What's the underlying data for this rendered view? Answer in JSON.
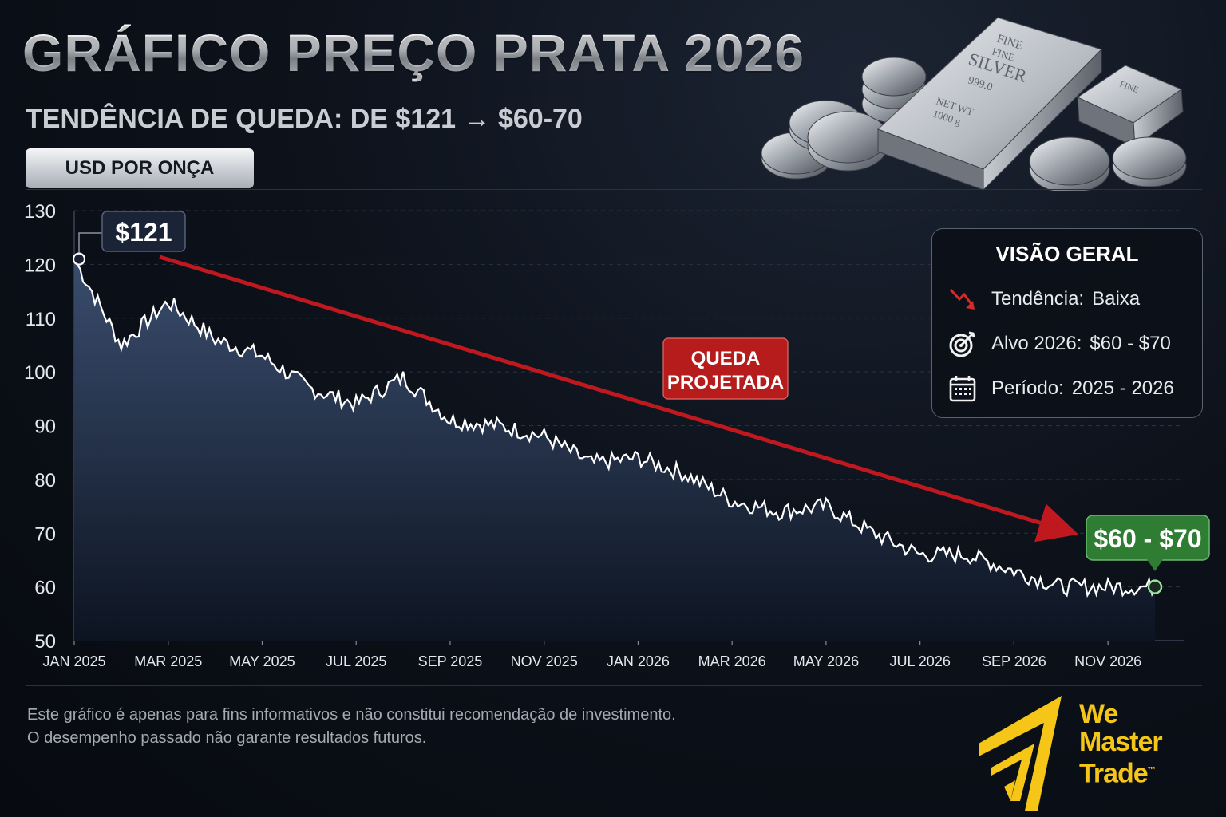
{
  "header": {
    "title": "GRÁFICO PREÇO PRATA 2026",
    "subtitle": "TENDÊNCIA DE QUEDA: DE $121 → $60-70",
    "unit_badge": "USD POR ONÇA"
  },
  "bullion": {
    "bar_line1": "FINE",
    "bar_line2": "FINE",
    "bar_line3": "SILVER",
    "bar_line4": "999.0",
    "bar_line5": "NET WT",
    "bar_line6": "1000 g",
    "bar2_text": "FINE"
  },
  "overview": {
    "title": "VISÃO GERAL",
    "rows": [
      {
        "icon": "trend-down-icon",
        "label": "Tendência:",
        "value": "Baixa"
      },
      {
        "icon": "target-icon",
        "label": "Alvo 2026:",
        "value": "$60 - $70"
      },
      {
        "icon": "calendar-icon",
        "label": "Período:",
        "value": "2025 - 2026"
      }
    ]
  },
  "disclaimer": {
    "line1": "Este gráfico é apenas para fins informativos e não constitui recomendação de investimento.",
    "line2": "O desempenho passado não garante resultados futuros."
  },
  "brand": {
    "line1": "We",
    "line2": "Master",
    "line3": "Trade",
    "tm": "™"
  },
  "colors": {
    "line": "#ffffff",
    "area_top": "#3a4d6e",
    "area_bottom": "#0d1421",
    "arrow": "#c0181f",
    "callout_green": "#2e7d32",
    "callout_red": "#b71c1c",
    "logo": "#f5c518"
  },
  "chart_data": {
    "type": "area",
    "ylim": [
      50,
      130
    ],
    "yticks": [
      50,
      60,
      70,
      80,
      90,
      100,
      110,
      120,
      130
    ],
    "xlabels": [
      "JAN 2025",
      "MAR 2025",
      "MAY 2025",
      "JUL 2025",
      "SEP 2025",
      "NOV 2025",
      "JAN 2026",
      "MAR 2026",
      "MAY 2026",
      "JUL 2026",
      "SEP 2026",
      "NOV 2026"
    ],
    "grid": true,
    "series": [
      {
        "x": [
          "JAN 2025",
          "FEB 2025",
          "MAR 2025",
          "APR 2025",
          "MAY 2025",
          "JUN 2025",
          "JUL 2025",
          "AUG 2025",
          "SEP 2025",
          "OCT 2025",
          "NOV 2025",
          "DEC 2025",
          "JAN 2026",
          "FEB 2026",
          "MAR 2026",
          "APR 2026",
          "MAY 2026",
          "JUN 2026",
          "JUL 2026",
          "AUG 2026",
          "SEP 2026",
          "OCT 2026",
          "NOV 2026",
          "DEC 2026"
        ],
        "values": [
          121,
          105,
          113,
          106,
          103,
          97,
          94,
          99,
          91,
          90,
          88,
          83,
          84,
          81,
          76,
          74,
          75,
          70,
          66,
          66,
          63,
          60,
          60,
          60
        ]
      }
    ],
    "annotations": [
      {
        "text": "$121",
        "x": "JAN 2025",
        "y": 121
      },
      {
        "text": "$60 - $70",
        "x": "DEC 2026",
        "y": 60
      },
      {
        "text_line1": "QUEDA",
        "text_line2": "PROJETADA"
      }
    ]
  }
}
